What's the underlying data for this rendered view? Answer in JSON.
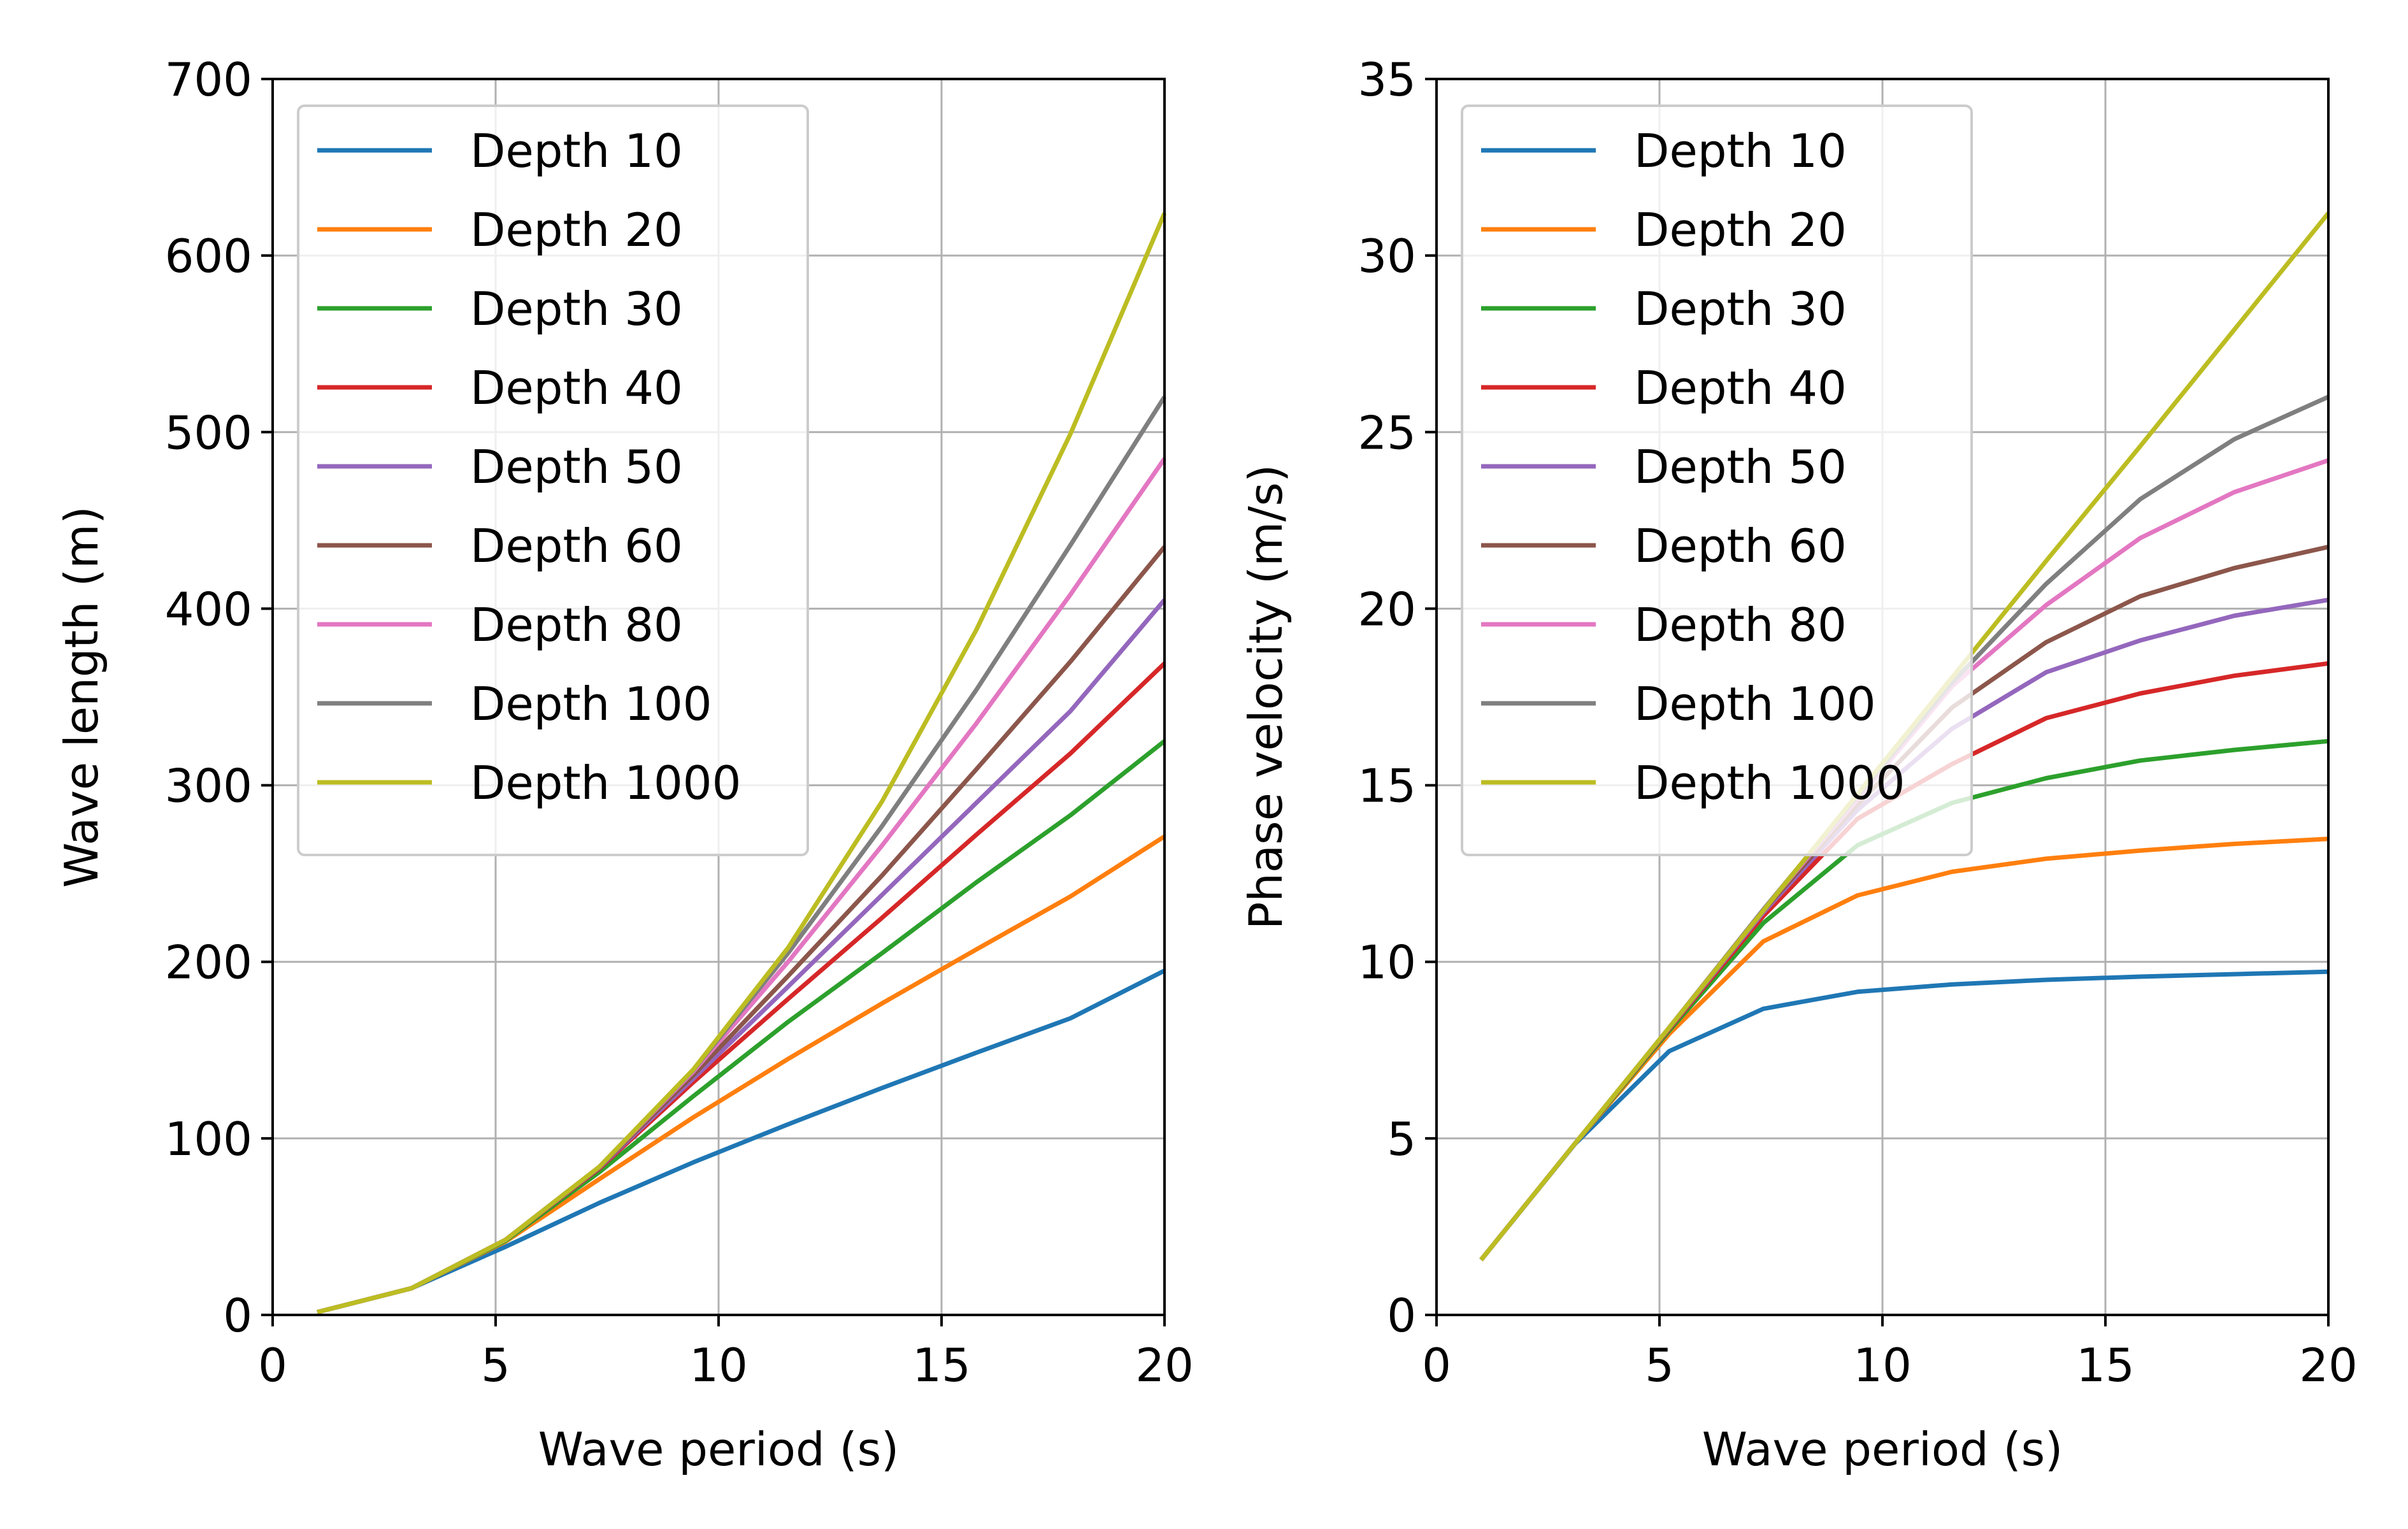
{
  "chart_data": [
    {
      "type": "line",
      "title": "",
      "xlabel": "Wave period (s)",
      "ylabel": "Wave length (m)",
      "xlim": [
        0,
        20
      ],
      "ylim": [
        0,
        700
      ],
      "xticks": [
        0,
        5,
        10,
        15,
        20
      ],
      "yticks": [
        0,
        100,
        200,
        300,
        400,
        500,
        600,
        700
      ],
      "grid": true,
      "legend_position": "upper-left",
      "x": [
        1.0,
        3.11,
        5.22,
        7.33,
        9.44,
        11.56,
        13.67,
        15.78,
        17.89,
        20.0
      ],
      "series": [
        {
          "name": "Depth 10",
          "color": "#1f77b4",
          "values": [
            1.6,
            15.1,
            38.6,
            63.5,
            86.5,
            108.0,
            128.6,
            148.5,
            168.0,
            195.0
          ]
        },
        {
          "name": "Depth 20",
          "color": "#ff7f0e",
          "values": [
            1.6,
            15.1,
            41.5,
            77.0,
            112.0,
            145.0,
            176.5,
            207.0,
            237.0,
            271.0
          ]
        },
        {
          "name": "Depth 30",
          "color": "#2ca02c",
          "values": [
            1.6,
            15.1,
            42.0,
            81.0,
            124.0,
            166.0,
            205.0,
            245.0,
            283.0,
            325.0
          ]
        },
        {
          "name": "Depth 40",
          "color": "#d62728",
          "values": [
            1.6,
            15.1,
            42.5,
            83.0,
            132.0,
            179.0,
            225.0,
            272.0,
            318.0,
            369.0
          ]
        },
        {
          "name": "Depth 50",
          "color": "#9467bd",
          "values": [
            1.6,
            15.1,
            42.5,
            83.5,
            134.0,
            186.0,
            238.0,
            290.0,
            342.0,
            405.0
          ]
        },
        {
          "name": "Depth 60",
          "color": "#8c564b",
          "values": [
            1.6,
            15.1,
            42.5,
            83.8,
            136.0,
            192.0,
            249.0,
            309.0,
            370.0,
            435.0
          ]
        },
        {
          "name": "Depth 80",
          "color": "#e377c2",
          "values": [
            1.6,
            15.1,
            42.5,
            84.0,
            138.0,
            200.0,
            266.0,
            335.0,
            408.0,
            485.0
          ]
        },
        {
          "name": "Depth 100",
          "color": "#7f7f7f",
          "values": [
            1.6,
            15.1,
            42.5,
            84.0,
            139.0,
            205.0,
            277.0,
            354.0,
            436.0,
            520.0
          ]
        },
        {
          "name": "Depth 1000",
          "color": "#bcbd22",
          "values": [
            1.6,
            15.1,
            42.5,
            84.0,
            139.2,
            208.0,
            291.0,
            388.0,
            499.0,
            624.0
          ]
        }
      ]
    },
    {
      "type": "line",
      "title": "",
      "xlabel": "Wave period (s)",
      "ylabel": "Phase velocity (m/s)",
      "xlim": [
        0,
        20
      ],
      "ylim": [
        0,
        35
      ],
      "xticks": [
        0,
        5,
        10,
        15,
        20
      ],
      "yticks": [
        0,
        5,
        10,
        15,
        20,
        25,
        30,
        35
      ],
      "grid": true,
      "legend_position": "upper-left",
      "x": [
        1.0,
        3.11,
        5.22,
        7.33,
        9.44,
        11.56,
        13.67,
        15.78,
        17.89,
        20.0
      ],
      "series": [
        {
          "name": "Depth 10",
          "color": "#1f77b4",
          "values": [
            1.56,
            4.85,
            7.47,
            8.67,
            9.15,
            9.36,
            9.49,
            9.58,
            9.65,
            9.72
          ]
        },
        {
          "name": "Depth 20",
          "color": "#ff7f0e",
          "values": [
            1.56,
            4.86,
            7.96,
            10.58,
            11.88,
            12.55,
            12.92,
            13.15,
            13.34,
            13.48
          ]
        },
        {
          "name": "Depth 30",
          "color": "#2ca02c",
          "values": [
            1.56,
            4.86,
            8.05,
            11.1,
            13.3,
            14.5,
            15.2,
            15.7,
            16.0,
            16.25
          ]
        },
        {
          "name": "Depth 40",
          "color": "#d62728",
          "values": [
            1.56,
            4.86,
            8.1,
            11.3,
            14.05,
            15.6,
            16.9,
            17.6,
            18.1,
            18.45
          ]
        },
        {
          "name": "Depth 50",
          "color": "#9467bd",
          "values": [
            1.56,
            4.86,
            8.12,
            11.4,
            14.3,
            16.6,
            18.2,
            19.1,
            19.8,
            20.25
          ]
        },
        {
          "name": "Depth 60",
          "color": "#8c564b",
          "values": [
            1.56,
            4.86,
            8.13,
            11.45,
            14.45,
            17.2,
            19.05,
            20.35,
            21.15,
            21.75
          ]
        },
        {
          "name": "Depth 80",
          "color": "#e377c2",
          "values": [
            1.56,
            4.86,
            8.14,
            11.48,
            14.6,
            17.8,
            20.1,
            22.0,
            23.3,
            24.2
          ]
        },
        {
          "name": "Depth 100",
          "color": "#7f7f7f",
          "values": [
            1.56,
            4.86,
            8.14,
            11.48,
            14.7,
            17.9,
            20.7,
            23.1,
            24.8,
            26.0
          ]
        },
        {
          "name": "Depth 1000",
          "color": "#bcbd22",
          "values": [
            1.56,
            4.86,
            8.14,
            11.45,
            14.75,
            18.05,
            21.35,
            24.6,
            27.9,
            31.2
          ]
        }
      ]
    }
  ]
}
